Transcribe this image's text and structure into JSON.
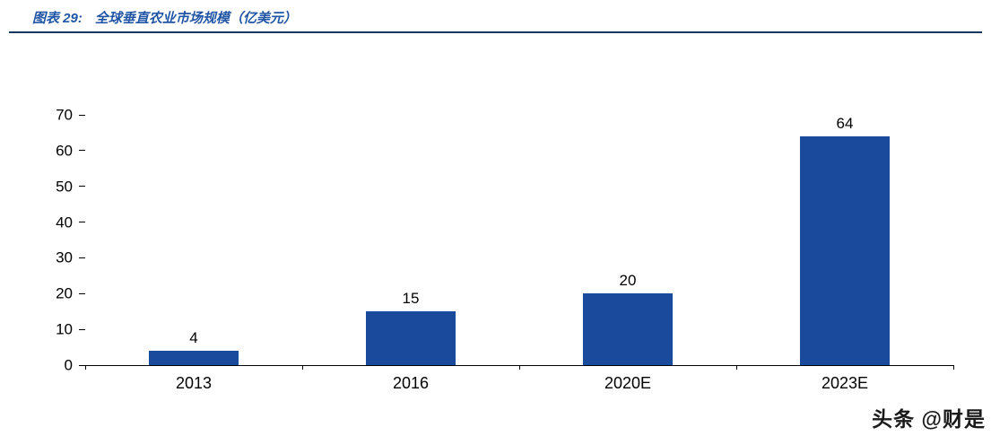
{
  "header": {
    "figure_label": "图表 29:",
    "title": "全球垂直农业市场规模（亿美元）"
  },
  "watermark": "头条 @财是",
  "colors": {
    "title_blue": "#2256A5",
    "rule_navy": "#17375E",
    "bar_blue": "#1A4A9C",
    "axis_black": "#000000"
  },
  "chart_data": {
    "type": "bar",
    "title": "全球垂直农业市场规模（亿美元）",
    "categories": [
      "2013",
      "2016",
      "2020E",
      "2023E"
    ],
    "values": [
      4,
      15,
      20,
      64
    ],
    "xlabel": "",
    "ylabel": "",
    "ylim": [
      0,
      70
    ],
    "ytick_step": 10,
    "yticks": [
      0,
      10,
      20,
      30,
      40,
      50,
      60,
      70
    ],
    "grid": false,
    "legend": false,
    "data_labels": true,
    "bar_color": "#1A4A9C"
  }
}
